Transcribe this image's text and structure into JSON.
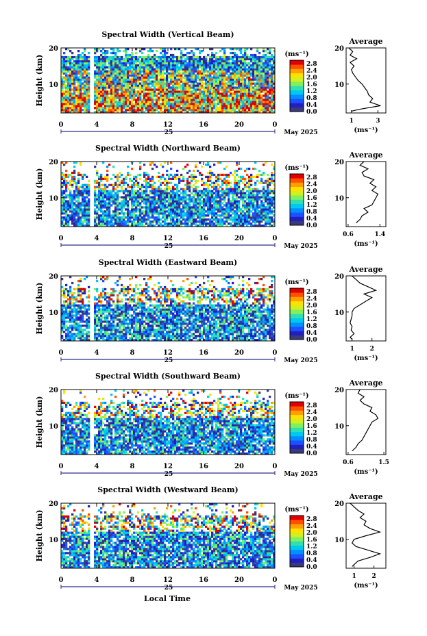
{
  "x_axis_label": "Local Time",
  "date_label": "May 2025",
  "day_label": "25",
  "colorbar": {
    "unit": "(ms⁻¹)",
    "ticks": [
      "0.0",
      "0.4",
      "0.8",
      "1.2",
      "1.6",
      "2.0",
      "2.4",
      "2.8"
    ],
    "colors": [
      "#3a3a7a",
      "#2020c0",
      "#1e50ff",
      "#0090ff",
      "#00c8f0",
      "#30e0b0",
      "#80f060",
      "#d0f020",
      "#ffe000",
      "#ffa000",
      "#ff5000",
      "#e00000"
    ]
  },
  "avg_title": "Average",
  "avg_unit": "(ms⁻¹)",
  "chart_data": [
    {
      "type": "heatmap",
      "title": "Spectral Width (Vertical Beam)",
      "ylabel": "Height (km)",
      "xlim": [
        0,
        24
      ],
      "ylim": [
        2,
        20
      ],
      "x_ticks": [
        "0",
        "4",
        "8",
        "12",
        "16",
        "20",
        "0"
      ],
      "y_ticks": [
        "20",
        "10"
      ],
      "profile": {
        "xlim": [
          0.6,
          3.6
        ],
        "x_ticks": [
          "1",
          "3"
        ],
        "height": [
          2.5,
          3,
          4,
          5,
          6,
          7,
          8,
          9,
          10,
          11,
          12,
          13,
          14,
          15,
          16,
          17,
          18,
          19,
          20
        ],
        "width": [
          1.0,
          1.6,
          3.2,
          2.4,
          2.6,
          2.3,
          2.2,
          2.0,
          1.8,
          1.5,
          1.3,
          1.1,
          1.0,
          1.2,
          0.9,
          1.4,
          0.9,
          1.1,
          0.8
        ]
      }
    },
    {
      "type": "heatmap",
      "title": "Spectral Width (Northward Beam)",
      "ylabel": "Height (km)",
      "xlim": [
        0,
        24
      ],
      "ylim": [
        2,
        20
      ],
      "x_ticks": [
        "0",
        "4",
        "8",
        "12",
        "16",
        "20",
        "0"
      ],
      "y_ticks": [
        "20",
        "10"
      ],
      "profile": {
        "xlim": [
          0.55,
          1.55
        ],
        "x_ticks": [
          "0.6",
          "1.4"
        ],
        "height": [
          3,
          4,
          5,
          6,
          7,
          8,
          9,
          10,
          11,
          12,
          13,
          14,
          15,
          16,
          17,
          18,
          19,
          20
        ],
        "width": [
          0.8,
          0.9,
          0.95,
          1.1,
          1.0,
          1.2,
          1.25,
          1.3,
          1.35,
          1.2,
          1.3,
          1.15,
          1.25,
          1.0,
          0.95,
          1.1,
          0.9,
          1.0
        ]
      }
    },
    {
      "type": "heatmap",
      "title": "Spectral Width (Eastward Beam)",
      "ylabel": "Height (km)",
      "xlim": [
        0,
        24
      ],
      "ylim": [
        2,
        20
      ],
      "x_ticks": [
        "0",
        "4",
        "8",
        "12",
        "16",
        "20",
        "0"
      ],
      "y_ticks": [
        "20",
        "10"
      ],
      "profile": {
        "xlim": [
          0.7,
          2.7
        ],
        "x_ticks": [
          "1",
          "2"
        ],
        "height": [
          2.5,
          3,
          4,
          5,
          6,
          7,
          8,
          9,
          10,
          11,
          12,
          13,
          14,
          15,
          16,
          17,
          18,
          19,
          20
        ],
        "width": [
          1.0,
          0.9,
          1.1,
          0.95,
          1.0,
          0.9,
          0.95,
          1.0,
          1.0,
          1.1,
          1.4,
          1.7,
          2.0,
          1.6,
          2.2,
          1.8,
          1.4,
          1.2,
          1.0
        ]
      }
    },
    {
      "type": "heatmap",
      "title": "Spectral Width (Southward Beam)",
      "ylabel": "Height (km)",
      "xlim": [
        0,
        24
      ],
      "ylim": [
        2,
        20
      ],
      "x_ticks": [
        "0",
        "4",
        "8",
        "12",
        "16",
        "20",
        "0"
      ],
      "y_ticks": [
        "20",
        "10"
      ],
      "profile": {
        "xlim": [
          0.55,
          1.55
        ],
        "x_ticks": [
          "0.6",
          "1.5"
        ],
        "height": [
          3,
          4,
          5,
          6,
          7,
          8,
          9,
          10,
          11,
          12,
          13,
          14,
          15,
          16,
          17,
          18,
          19,
          20
        ],
        "width": [
          0.7,
          0.8,
          0.85,
          0.95,
          1.0,
          1.05,
          1.1,
          1.15,
          1.2,
          1.35,
          1.3,
          1.15,
          1.2,
          1.0,
          0.9,
          1.0,
          0.85,
          0.9
        ]
      }
    },
    {
      "type": "heatmap",
      "title": "Spectral Width (Westward Beam)",
      "ylabel": "Height (km)",
      "xlim": [
        0,
        24
      ],
      "ylim": [
        2,
        20
      ],
      "x_ticks": [
        "0",
        "4",
        "8",
        "12",
        "16",
        "20",
        "0"
      ],
      "y_ticks": [
        "20",
        "10"
      ],
      "profile": {
        "xlim": [
          0.6,
          2.6
        ],
        "x_ticks": [
          "1",
          "2"
        ],
        "height": [
          2.5,
          3,
          4,
          5,
          6,
          7,
          8,
          9,
          10,
          11,
          12,
          13,
          14,
          15,
          16,
          17,
          18,
          19,
          20
        ],
        "width": [
          0.9,
          1.0,
          1.2,
          1.8,
          2.3,
          1.7,
          1.1,
          0.9,
          1.0,
          1.6,
          2.3,
          1.8,
          1.5,
          1.6,
          1.3,
          1.5,
          1.2,
          1.0,
          0.8
        ]
      }
    }
  ]
}
